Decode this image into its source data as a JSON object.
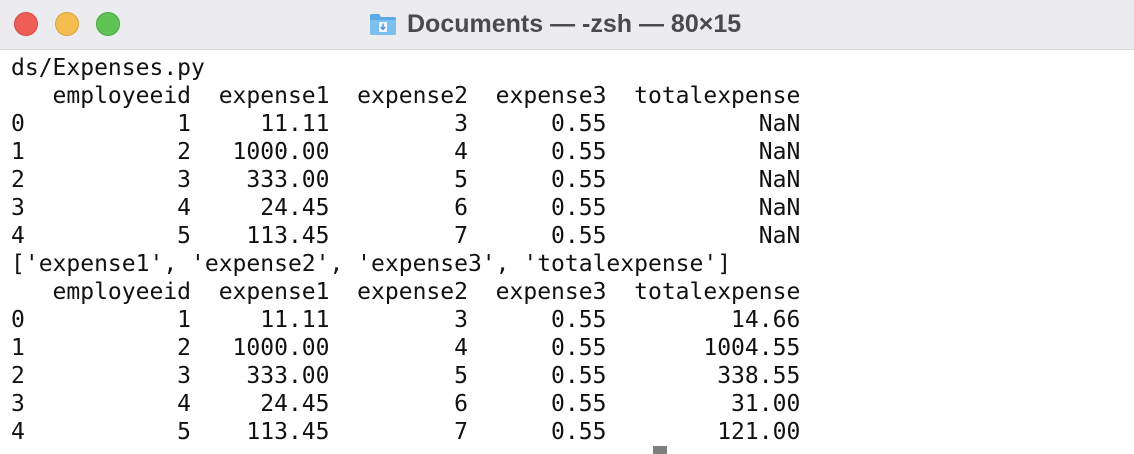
{
  "window": {
    "title": "Documents — -zsh — 80×15",
    "icon": "folder-icon"
  },
  "colors": {
    "close": "#ee5e57",
    "minimize": "#f4bd4f",
    "maximize": "#5fc453",
    "titlebar": "#ecebf0",
    "text": "#111111"
  },
  "terminal": {
    "lines": [
      "ds/Expenses.py",
      "   employeeid  expense1  expense2  expense3  totalexpense",
      "0           1     11.11         3      0.55           NaN",
      "1           2   1000.00         4      0.55           NaN",
      "2           3    333.00         5      0.55           NaN",
      "3           4     24.45         6      0.55           NaN",
      "4           5    113.45         7      0.55           NaN",
      "['expense1', 'expense2', 'expense3', 'totalexpense']",
      "   employeeid  expense1  expense2  expense3  totalexpense",
      "0           1     11.11         3      0.55         14.66",
      "1           2   1000.00         4      0.55       1004.55",
      "2           3    333.00         5      0.55        338.55",
      "3           4     24.45         6      0.55         31.00",
      "4           5    113.45         7      0.55        121.00"
    ]
  }
}
